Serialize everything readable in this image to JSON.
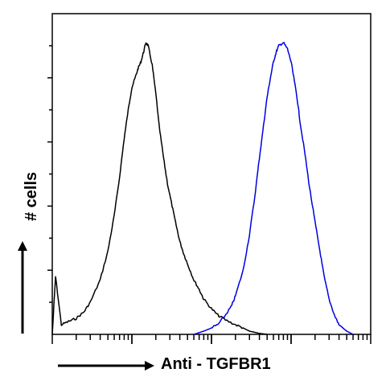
{
  "chart_data": {
    "type": "line",
    "title": "",
    "xlabel": "Anti - TGFBR1",
    "ylabel": "# cells",
    "x_scale": "log",
    "xlim": [
      1,
      10000
    ],
    "ylim": [
      0,
      100
    ],
    "grid": false,
    "legend": "none",
    "series": [
      {
        "color": "#000000",
        "x": [
          1,
          1.1,
          1.3,
          1.6,
          2,
          2.5,
          3,
          4,
          5,
          6,
          7,
          8,
          9,
          10,
          11,
          12,
          13,
          14,
          15,
          16,
          18,
          20,
          22,
          25,
          28,
          32,
          36,
          40,
          45,
          50,
          60,
          70,
          80,
          100,
          120,
          150,
          200,
          250,
          300,
          400,
          500
        ],
        "y": [
          0,
          18,
          3,
          4,
          5,
          7,
          10,
          17,
          26,
          37,
          49,
          61,
          70,
          77,
          80,
          83,
          85,
          88,
          91,
          90,
          84,
          75,
          65,
          55,
          47,
          40,
          34,
          29,
          25,
          22,
          17,
          14,
          11,
          8,
          6,
          4.5,
          3,
          2,
          1,
          0.3,
          0
        ]
      },
      {
        "color": "#0000dd",
        "x": [
          60,
          80,
          100,
          120,
          150,
          180,
          200,
          250,
          300,
          350,
          400,
          450,
          500,
          550,
          600,
          650,
          700,
          800,
          900,
          1000,
          1100,
          1200,
          1300,
          1500,
          1700,
          2000,
          2300,
          2600,
          3000,
          3500,
          4000,
          5000,
          6000
        ],
        "y": [
          0,
          1,
          2,
          3,
          6,
          9,
          12,
          20,
          31,
          43,
          55,
          65,
          74,
          80,
          85,
          88,
          90,
          91,
          89,
          85,
          79,
          73,
          66,
          56,
          46,
          35,
          26,
          18,
          11,
          6,
          3,
          1,
          0
        ]
      }
    ]
  }
}
